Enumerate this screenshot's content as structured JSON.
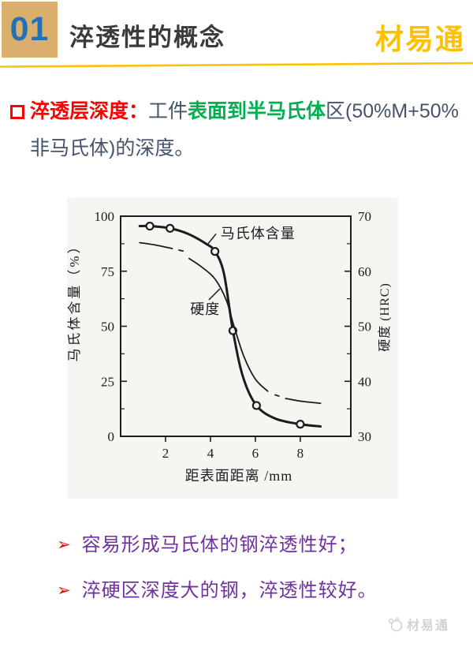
{
  "header": {
    "number": "01",
    "title": "淬透性的概念",
    "brand": "材易通"
  },
  "colors": {
    "gold": "#FFC000",
    "tan": "#DAAE6B",
    "blue": "#1F72BB",
    "red": "#FE0000",
    "green": "#00B050",
    "purple": "#7030A0",
    "dark": "#44546A",
    "title": "#3B3B3B",
    "wm": "#D4D2CE"
  },
  "definition": {
    "lines": [
      {
        "segments": [
          {
            "text": "淬透层深度：",
            "style": "red-bold"
          },
          {
            "text": "工件",
            "style": "dark"
          },
          {
            "text": "表面到半马氏体",
            "style": "green-bold"
          },
          {
            "text": "区(50%M+50%",
            "style": "dark"
          }
        ]
      },
      {
        "segments": [
          {
            "text": "非马氏体)的深度。",
            "style": "dark"
          }
        ]
      }
    ]
  },
  "chart_data": {
    "type": "line",
    "title": "",
    "xlabel": "距表面距离 /mm",
    "ylabel_left": "马氏体含量（%）",
    "ylabel_right": "硬度 (HRC)",
    "xlim": [
      0,
      10.25
    ],
    "ylim_left": [
      0,
      100
    ],
    "ylim_right": [
      30,
      70
    ],
    "xticks": [
      2,
      4,
      6,
      8
    ],
    "yticks_left": [
      0,
      25,
      50,
      75,
      100
    ],
    "yticks_left_minor": [
      12.5,
      37.5,
      62.5,
      87.5
    ],
    "yticks_right": [
      30,
      40,
      50,
      60,
      70
    ],
    "yticks_right_minor": [
      35,
      45,
      55,
      65
    ],
    "grid": false,
    "series": [
      {
        "name": "马氏体含量",
        "style": "solid-thick",
        "points": [
          [
            0.85,
            95.5
          ],
          [
            1.3,
            95.5
          ],
          [
            2.2,
            94.5
          ],
          [
            3.0,
            92
          ],
          [
            3.8,
            87.5
          ],
          [
            4.2,
            84
          ],
          [
            4.6,
            74
          ],
          [
            5.0,
            48
          ],
          [
            5.45,
            27
          ],
          [
            6.05,
            14
          ],
          [
            6.9,
            8
          ],
          [
            8.0,
            5.5
          ],
          [
            8.9,
            4.5
          ]
        ],
        "markers": [
          [
            1.3,
            95.5
          ],
          [
            2.2,
            94.5
          ],
          [
            4.2,
            84
          ],
          [
            5.0,
            48
          ],
          [
            6.05,
            14
          ],
          [
            8.0,
            5.5
          ]
        ]
      },
      {
        "name": "硬度",
        "style": "thin-dashdot",
        "segments": [
          [
            [
              0.85,
              88
            ],
            [
              1.5,
              87
            ],
            [
              2.3,
              85.3
            ]
          ],
          [
            [
              2.6,
              84.6
            ],
            [
              2.78,
              84.2
            ]
          ],
          [
            [
              3.05,
              80.8
            ],
            [
              3.6,
              77
            ],
            [
              4.2,
              71.5
            ],
            [
              4.7,
              62
            ],
            [
              5.05,
              50
            ],
            [
              5.5,
              36
            ],
            [
              6.0,
              26
            ],
            [
              6.55,
              20.5
            ]
          ],
          [
            [
              6.88,
              18.8
            ],
            [
              7.05,
              18.3
            ]
          ],
          [
            [
              7.35,
              17.2
            ],
            [
              8.0,
              16
            ],
            [
              8.9,
              15
            ]
          ]
        ]
      }
    ],
    "annotations": [
      {
        "text": "马氏体含量",
        "x": 4.45,
        "y": 90,
        "leader": [
          [
            3.88,
            87.3
          ],
          [
            4.25,
            92
          ]
        ]
      },
      {
        "text": "硬度",
        "x": 3.1,
        "y": 55.5,
        "leader": [
          [
            3.93,
            62
          ],
          [
            4.42,
            67
          ]
        ]
      }
    ]
  },
  "bullets": {
    "icon": "➢",
    "items": [
      "容易形成马氏体的钢淬透性好；",
      "淬硬区深度大的钢，淬透性较好。"
    ]
  },
  "watermark": {
    "brand": "材易通"
  }
}
